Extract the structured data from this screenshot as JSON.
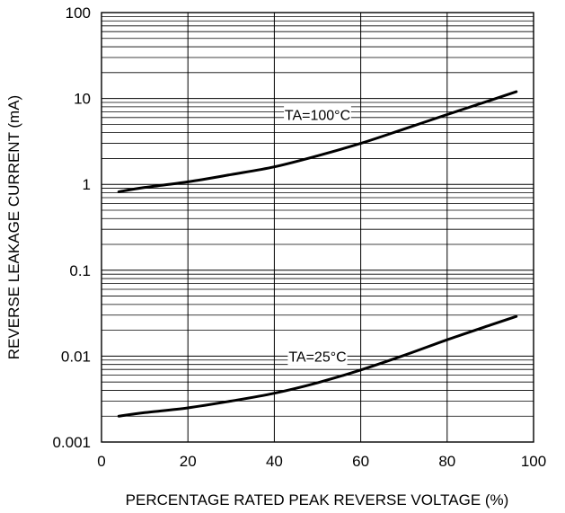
{
  "chart_data": {
    "type": "line",
    "xlabel": "PERCENTAGE RATED PEAK REVERSE VOLTAGE (%)",
    "ylabel": "REVERSE LEAKAGE CURRENT (mA)",
    "xlim": [
      0,
      100
    ],
    "ylim": [
      0.001,
      100
    ],
    "yscale": "log",
    "grid": true,
    "x_ticks": [
      0,
      20,
      40,
      60,
      80,
      100
    ],
    "x_tick_labels": [
      "0",
      "20",
      "40",
      "60",
      "80",
      "100"
    ],
    "y_ticks": [
      0.001,
      0.01,
      0.1,
      1,
      10,
      100
    ],
    "y_tick_labels": [
      "0.001",
      "0.01",
      "0.1",
      "1",
      "10",
      "100"
    ],
    "series": [
      {
        "name": "TA=100°C",
        "x": [
          4,
          10,
          20,
          30,
          40,
          50,
          60,
          70,
          80,
          90,
          96
        ],
        "y": [
          0.82,
          0.92,
          1.07,
          1.3,
          1.6,
          2.15,
          3.0,
          4.4,
          6.5,
          9.5,
          12.0
        ],
        "label_at": [
          50,
          6.5
        ]
      },
      {
        "name": "TA=25°C",
        "x": [
          4,
          10,
          20,
          30,
          40,
          50,
          60,
          70,
          80,
          90,
          96
        ],
        "y": [
          0.002,
          0.0022,
          0.0025,
          0.003,
          0.0037,
          0.0049,
          0.0069,
          0.0102,
          0.0155,
          0.023,
          0.029
        ],
        "label_at": [
          50,
          0.01
        ]
      }
    ]
  }
}
